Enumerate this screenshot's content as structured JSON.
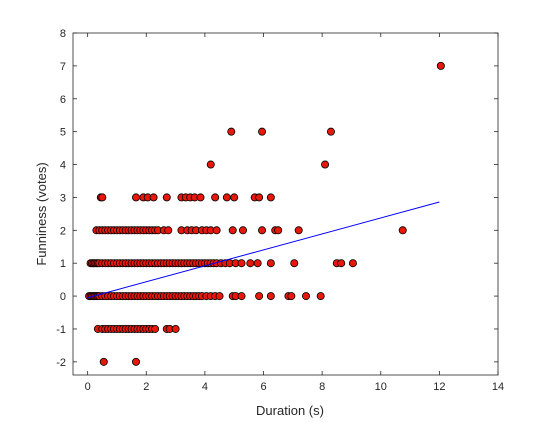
{
  "chart_data": {
    "type": "scatter",
    "title": "",
    "xlabel": "Duration (s)",
    "ylabel": "Funniness (votes)",
    "xlim": [
      -0.5,
      14
    ],
    "ylim": [
      -2.4,
      8
    ],
    "xticks": [
      0,
      2,
      4,
      6,
      8,
      10,
      12,
      14
    ],
    "yticks": [
      -2,
      -1,
      0,
      1,
      2,
      3,
      4,
      5,
      6,
      7,
      8
    ],
    "grid": false,
    "legend": "none",
    "marker_color": "#e8170c",
    "marker_edge_color": "#000000",
    "line_color": "#0000ff",
    "fit_line": {
      "x": [
        0,
        12
      ],
      "y": [
        -0.05,
        2.86
      ]
    },
    "series": [
      {
        "points": [
          [
            0.45,
            3
          ],
          [
            0.5,
            3
          ],
          [
            1.65,
            3
          ],
          [
            1.9,
            3
          ],
          [
            2.05,
            3
          ],
          [
            2.25,
            3
          ],
          [
            2.7,
            3
          ],
          [
            3.2,
            3
          ],
          [
            3.35,
            3
          ],
          [
            3.5,
            3
          ],
          [
            3.65,
            3
          ],
          [
            3.85,
            3
          ],
          [
            4.35,
            3
          ],
          [
            4.75,
            3
          ],
          [
            5.0,
            3
          ],
          [
            5.7,
            3
          ],
          [
            5.85,
            3
          ],
          [
            6.25,
            3
          ],
          [
            0.3,
            2
          ],
          [
            0.4,
            2
          ],
          [
            0.5,
            2
          ],
          [
            0.6,
            2
          ],
          [
            0.7,
            2
          ],
          [
            0.8,
            2
          ],
          [
            0.9,
            2
          ],
          [
            1.0,
            2
          ],
          [
            1.1,
            2
          ],
          [
            1.2,
            2
          ],
          [
            1.3,
            2
          ],
          [
            1.4,
            2
          ],
          [
            1.5,
            2
          ],
          [
            1.6,
            2
          ],
          [
            1.7,
            2
          ],
          [
            1.8,
            2
          ],
          [
            1.9,
            2
          ],
          [
            2.0,
            2
          ],
          [
            2.1,
            2
          ],
          [
            2.2,
            2
          ],
          [
            2.3,
            2
          ],
          [
            2.4,
            2
          ],
          [
            2.6,
            2
          ],
          [
            2.75,
            2
          ],
          [
            3.2,
            2
          ],
          [
            3.4,
            2
          ],
          [
            3.55,
            2
          ],
          [
            3.7,
            2
          ],
          [
            3.9,
            2
          ],
          [
            4.05,
            2
          ],
          [
            4.2,
            2
          ],
          [
            4.4,
            2
          ],
          [
            4.95,
            2
          ],
          [
            5.3,
            2
          ],
          [
            5.95,
            2
          ],
          [
            6.4,
            2
          ],
          [
            6.5,
            2
          ],
          [
            7.2,
            2
          ],
          [
            10.75,
            2
          ],
          [
            0.1,
            1
          ],
          [
            0.15,
            1
          ],
          [
            0.2,
            1
          ],
          [
            0.25,
            1
          ],
          [
            0.3,
            1
          ],
          [
            0.35,
            1
          ],
          [
            0.4,
            1
          ],
          [
            0.5,
            1
          ],
          [
            0.6,
            1
          ],
          [
            0.7,
            1
          ],
          [
            0.8,
            1
          ],
          [
            0.9,
            1
          ],
          [
            1.0,
            1
          ],
          [
            1.1,
            1
          ],
          [
            1.2,
            1
          ],
          [
            1.3,
            1
          ],
          [
            1.4,
            1
          ],
          [
            1.5,
            1
          ],
          [
            1.6,
            1
          ],
          [
            1.7,
            1
          ],
          [
            1.8,
            1
          ],
          [
            1.9,
            1
          ],
          [
            2.0,
            1
          ],
          [
            2.1,
            1
          ],
          [
            2.2,
            1
          ],
          [
            2.3,
            1
          ],
          [
            2.4,
            1
          ],
          [
            2.5,
            1
          ],
          [
            2.6,
            1
          ],
          [
            2.7,
            1
          ],
          [
            2.8,
            1
          ],
          [
            2.9,
            1
          ],
          [
            3.0,
            1
          ],
          [
            3.1,
            1
          ],
          [
            3.2,
            1
          ],
          [
            3.3,
            1
          ],
          [
            3.4,
            1
          ],
          [
            3.5,
            1
          ],
          [
            3.6,
            1
          ],
          [
            3.7,
            1
          ],
          [
            3.8,
            1
          ],
          [
            3.9,
            1
          ],
          [
            4.0,
            1
          ],
          [
            4.1,
            1
          ],
          [
            4.2,
            1
          ],
          [
            4.3,
            1
          ],
          [
            4.4,
            1
          ],
          [
            4.55,
            1
          ],
          [
            4.7,
            1
          ],
          [
            4.85,
            1
          ],
          [
            5.05,
            1
          ],
          [
            5.25,
            1
          ],
          [
            5.55,
            1
          ],
          [
            5.8,
            1
          ],
          [
            6.25,
            1
          ],
          [
            7.05,
            1
          ],
          [
            8.5,
            1
          ],
          [
            8.65,
            1
          ],
          [
            9.05,
            1
          ],
          [
            0.05,
            0
          ],
          [
            0.1,
            0
          ],
          [
            0.15,
            0
          ],
          [
            0.2,
            0
          ],
          [
            0.25,
            0
          ],
          [
            0.3,
            0
          ],
          [
            0.35,
            0
          ],
          [
            0.4,
            0
          ],
          [
            0.5,
            0
          ],
          [
            0.6,
            0
          ],
          [
            0.7,
            0
          ],
          [
            0.8,
            0
          ],
          [
            0.9,
            0
          ],
          [
            1.0,
            0
          ],
          [
            1.1,
            0
          ],
          [
            1.2,
            0
          ],
          [
            1.3,
            0
          ],
          [
            1.4,
            0
          ],
          [
            1.5,
            0
          ],
          [
            1.6,
            0
          ],
          [
            1.7,
            0
          ],
          [
            1.8,
            0
          ],
          [
            1.9,
            0
          ],
          [
            2.0,
            0
          ],
          [
            2.1,
            0
          ],
          [
            2.2,
            0
          ],
          [
            2.3,
            0
          ],
          [
            2.4,
            0
          ],
          [
            2.5,
            0
          ],
          [
            2.6,
            0
          ],
          [
            2.7,
            0
          ],
          [
            2.8,
            0
          ],
          [
            2.9,
            0
          ],
          [
            3.0,
            0
          ],
          [
            3.1,
            0
          ],
          [
            3.2,
            0
          ],
          [
            3.3,
            0
          ],
          [
            3.4,
            0
          ],
          [
            3.5,
            0
          ],
          [
            3.6,
            0
          ],
          [
            3.7,
            0
          ],
          [
            3.8,
            0
          ],
          [
            3.9,
            0
          ],
          [
            4.05,
            0
          ],
          [
            4.2,
            0
          ],
          [
            4.35,
            0
          ],
          [
            4.5,
            0
          ],
          [
            4.95,
            0
          ],
          [
            5.05,
            0
          ],
          [
            5.25,
            0
          ],
          [
            5.85,
            0
          ],
          [
            6.25,
            0
          ],
          [
            6.85,
            0
          ],
          [
            6.95,
            0
          ],
          [
            7.45,
            0
          ],
          [
            7.95,
            0
          ],
          [
            0.35,
            -1
          ],
          [
            0.5,
            -1
          ],
          [
            0.6,
            -1
          ],
          [
            0.7,
            -1
          ],
          [
            0.8,
            -1
          ],
          [
            0.9,
            -1
          ],
          [
            1.0,
            -1
          ],
          [
            1.1,
            -1
          ],
          [
            1.2,
            -1
          ],
          [
            1.3,
            -1
          ],
          [
            1.4,
            -1
          ],
          [
            1.5,
            -1
          ],
          [
            1.6,
            -1
          ],
          [
            1.7,
            -1
          ],
          [
            1.8,
            -1
          ],
          [
            1.9,
            -1
          ],
          [
            2.0,
            -1
          ],
          [
            2.1,
            -1
          ],
          [
            2.2,
            -1
          ],
          [
            2.3,
            -1
          ],
          [
            2.7,
            -1
          ],
          [
            2.8,
            -1
          ],
          [
            3.0,
            -1
          ],
          [
            0.55,
            -2
          ],
          [
            1.65,
            -2
          ],
          [
            4.2,
            4
          ],
          [
            8.1,
            4
          ],
          [
            4.9,
            5
          ],
          [
            5.95,
            5
          ],
          [
            8.3,
            5
          ],
          [
            12.05,
            7
          ]
        ]
      }
    ]
  }
}
